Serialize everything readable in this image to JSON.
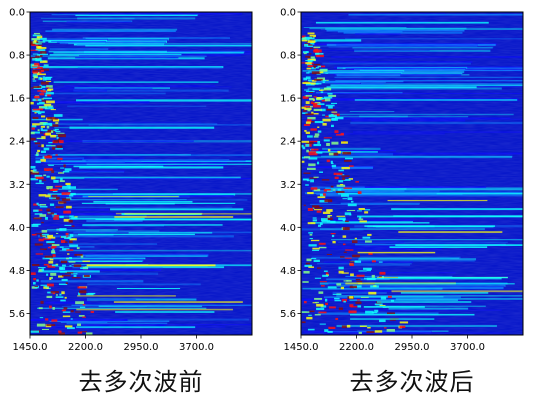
{
  "chart_data": [
    {
      "type": "heatmap",
      "title": "去多次波前",
      "colormap": "jet",
      "x_ticks": [
        "1450.0",
        "2200.0",
        "2950.0",
        "3700.0"
      ],
      "y_ticks": [
        "0.0",
        "0.8",
        "1.6",
        "2.4",
        "3.2",
        "4.0",
        "4.8",
        "5.6"
      ],
      "x_tick_values": [
        1450,
        2200,
        2950,
        3700
      ],
      "y_tick_values": [
        0.0,
        0.8,
        1.6,
        2.4,
        3.2,
        4.0,
        4.8,
        5.6
      ],
      "xlim": [
        1450,
        4450
      ],
      "ylim": [
        6.0,
        0.0
      ],
      "y_inverted": true,
      "grid": false
    },
    {
      "type": "heatmap",
      "title": "去多次波后",
      "colormap": "jet",
      "x_ticks": [
        "1450.0",
        "2200.0",
        "2950.0",
        "3700.0"
      ],
      "y_ticks": [
        "0.0",
        "0.8",
        "1.6",
        "2.4",
        "3.2",
        "4.0",
        "4.8",
        "5.6"
      ],
      "x_tick_values": [
        1450,
        2200,
        2950,
        3700
      ],
      "y_tick_values": [
        0.0,
        0.8,
        1.6,
        2.4,
        3.2,
        4.0,
        4.8,
        5.6
      ],
      "xlim": [
        1450,
        4450
      ],
      "ylim": [
        6.0,
        0.0
      ],
      "y_inverted": true,
      "grid": false
    }
  ]
}
